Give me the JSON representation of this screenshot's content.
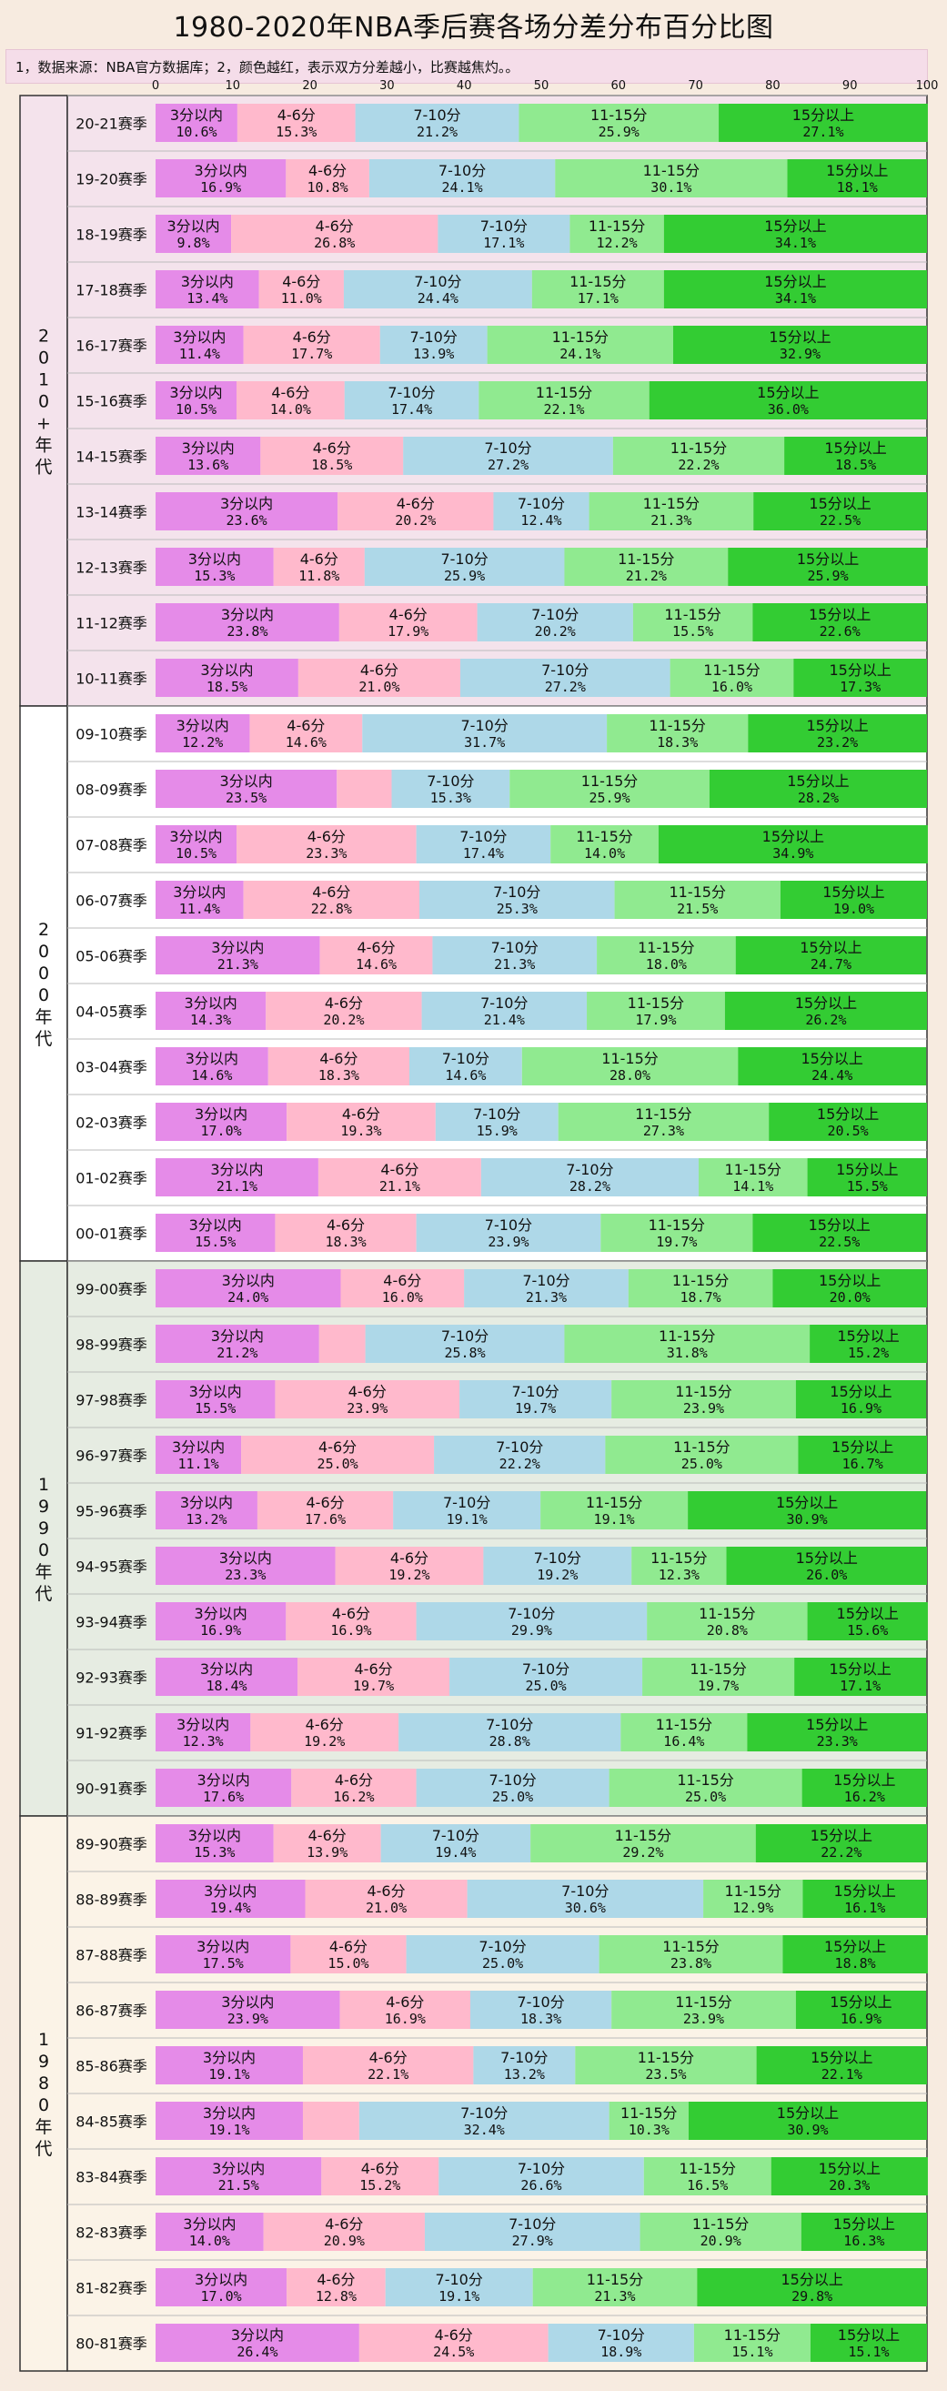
{
  "title": "1980-2020年NBA季后赛各场分差分布百分比图",
  "note": "1，数据来源：NBA官方数据库；2，颜色越红，表示双方分差越小，比赛越焦灼。。",
  "chart_data": {
    "type": "bar",
    "stacked": true,
    "orientation": "horizontal",
    "title": "1980-2020年NBA季后赛各场分差分布百分比图",
    "xlim": [
      0,
      100
    ],
    "xticks": [
      0,
      10,
      20,
      30,
      40,
      50,
      60,
      70,
      80,
      90,
      100
    ],
    "grid": false,
    "series_names": [
      "3分以内",
      "4-6分",
      "7-10分",
      "11-15分",
      "15分以上"
    ],
    "colors": [
      "#e58be8",
      "#ffb9cc",
      "#aed8e8",
      "#90ea90",
      "#33cc33"
    ],
    "groups": [
      {
        "label": "2010+年代",
        "bg": "#f4e3ec",
        "seasons": [
          {
            "season": "20-21赛季",
            "values": [
              10.6,
              15.3,
              21.2,
              25.9,
              27.1
            ]
          },
          {
            "season": "19-20赛季",
            "values": [
              16.9,
              10.8,
              24.1,
              30.1,
              18.1
            ]
          },
          {
            "season": "18-19赛季",
            "values": [
              9.8,
              26.8,
              17.1,
              12.2,
              34.1
            ]
          },
          {
            "season": "17-18赛季",
            "values": [
              13.4,
              11.0,
              24.4,
              17.1,
              34.1
            ]
          },
          {
            "season": "16-17赛季",
            "values": [
              11.4,
              17.7,
              13.9,
              24.1,
              32.9
            ]
          },
          {
            "season": "15-16赛季",
            "values": [
              10.5,
              14.0,
              17.4,
              22.1,
              36.0
            ]
          },
          {
            "season": "14-15赛季",
            "values": [
              13.6,
              18.5,
              27.2,
              22.2,
              18.5
            ]
          },
          {
            "season": "13-14赛季",
            "values": [
              23.6,
              20.2,
              12.4,
              21.3,
              22.5
            ]
          },
          {
            "season": "12-13赛季",
            "values": [
              15.3,
              11.8,
              25.9,
              21.2,
              25.9
            ]
          },
          {
            "season": "11-12赛季",
            "values": [
              23.8,
              17.9,
              20.2,
              15.5,
              22.6
            ]
          },
          {
            "season": "10-11赛季",
            "values": [
              18.5,
              21.0,
              27.2,
              16.0,
              17.3
            ]
          }
        ]
      },
      {
        "label": "2000年代",
        "bg": "#ffffff",
        "seasons": [
          {
            "season": "09-10赛季",
            "values": [
              12.2,
              14.6,
              31.7,
              18.3,
              23.2
            ]
          },
          {
            "season": "08-09赛季",
            "values": [
              23.5,
              7.1,
              15.3,
              25.9,
              28.2
            ]
          },
          {
            "season": "07-08赛季",
            "values": [
              10.5,
              23.3,
              17.4,
              14.0,
              34.9
            ]
          },
          {
            "season": "06-07赛季",
            "values": [
              11.4,
              22.8,
              25.3,
              21.5,
              19.0
            ]
          },
          {
            "season": "05-06赛季",
            "values": [
              21.3,
              14.6,
              21.3,
              18.0,
              24.7
            ]
          },
          {
            "season": "04-05赛季",
            "values": [
              14.3,
              20.2,
              21.4,
              17.9,
              26.2
            ]
          },
          {
            "season": "03-04赛季",
            "values": [
              14.6,
              18.3,
              14.6,
              28.0,
              24.4
            ]
          },
          {
            "season": "02-03赛季",
            "values": [
              17.0,
              19.3,
              15.9,
              27.3,
              20.5
            ]
          },
          {
            "season": "01-02赛季",
            "values": [
              21.1,
              21.1,
              28.2,
              14.1,
              15.5
            ]
          },
          {
            "season": "00-01赛季",
            "values": [
              15.5,
              18.3,
              23.9,
              19.7,
              22.5
            ]
          }
        ]
      },
      {
        "label": "1990年代",
        "bg": "#e6ece2",
        "seasons": [
          {
            "season": "99-00赛季",
            "values": [
              24.0,
              16.0,
              21.3,
              18.7,
              20.0
            ]
          },
          {
            "season": "98-99赛季",
            "values": [
              21.2,
              6.0,
              25.8,
              31.8,
              15.2
            ]
          },
          {
            "season": "97-98赛季",
            "values": [
              15.5,
              23.9,
              19.7,
              23.9,
              16.9
            ]
          },
          {
            "season": "96-97赛季",
            "values": [
              11.1,
              25.0,
              22.2,
              25.0,
              16.7
            ]
          },
          {
            "season": "95-96赛季",
            "values": [
              13.2,
              17.6,
              19.1,
              19.1,
              30.9
            ]
          },
          {
            "season": "94-95赛季",
            "values": [
              23.3,
              19.2,
              19.2,
              12.3,
              26.0
            ]
          },
          {
            "season": "93-94赛季",
            "values": [
              16.9,
              16.9,
              29.9,
              20.8,
              15.6
            ]
          },
          {
            "season": "92-93赛季",
            "values": [
              18.4,
              19.7,
              25.0,
              19.7,
              17.1
            ]
          },
          {
            "season": "91-92赛季",
            "values": [
              12.3,
              19.2,
              28.8,
              16.4,
              23.3
            ]
          },
          {
            "season": "90-91赛季",
            "values": [
              17.6,
              16.2,
              25.0,
              25.0,
              16.2
            ]
          }
        ]
      },
      {
        "label": "1980年代",
        "bg": "#fbf3e7",
        "seasons": [
          {
            "season": "89-90赛季",
            "values": [
              15.3,
              13.9,
              19.4,
              29.2,
              22.2
            ]
          },
          {
            "season": "88-89赛季",
            "values": [
              19.4,
              21.0,
              30.6,
              12.9,
              16.1
            ]
          },
          {
            "season": "87-88赛季",
            "values": [
              17.5,
              15.0,
              25.0,
              23.8,
              18.8
            ]
          },
          {
            "season": "86-87赛季",
            "values": [
              23.9,
              16.9,
              18.3,
              23.9,
              16.9
            ]
          },
          {
            "season": "85-86赛季",
            "values": [
              19.1,
              22.1,
              13.2,
              23.5,
              22.1
            ]
          },
          {
            "season": "84-85赛季",
            "values": [
              19.1,
              7.3,
              32.4,
              10.3,
              30.9
            ]
          },
          {
            "season": "83-84赛季",
            "values": [
              21.5,
              15.2,
              26.6,
              16.5,
              20.3
            ]
          },
          {
            "season": "82-83赛季",
            "values": [
              14.0,
              20.9,
              27.9,
              20.9,
              16.3
            ]
          },
          {
            "season": "81-82赛季",
            "values": [
              17.0,
              12.8,
              19.1,
              21.3,
              29.8
            ]
          },
          {
            "season": "80-81赛季",
            "values": [
              26.4,
              24.5,
              18.9,
              15.1,
              15.1
            ]
          }
        ]
      }
    ]
  }
}
